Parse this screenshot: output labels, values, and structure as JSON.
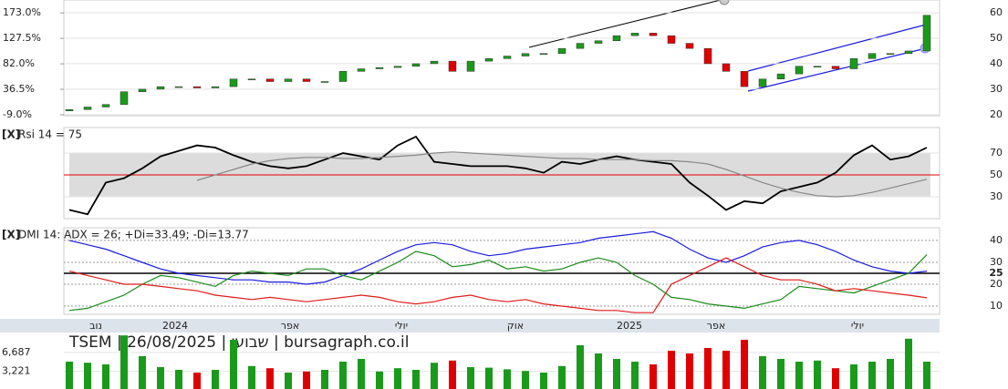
{
  "chart_data": [
    {
      "type": "candlestick",
      "open": [
        21.5,
        22,
        23,
        24,
        29,
        30,
        31,
        31,
        30.5,
        31,
        34,
        34,
        33,
        34,
        33,
        33,
        37,
        38,
        38.5,
        39,
        40,
        41,
        37,
        41,
        42,
        43,
        44,
        44,
        46,
        48,
        49,
        51,
        52,
        51,
        48,
        46,
        40,
        37,
        31,
        34,
        36,
        39,
        39,
        38,
        42,
        44,
        44,
        45
      ],
      "close": [
        22,
        23,
        24,
        29,
        30,
        31,
        31,
        30.5,
        31,
        34,
        34,
        33,
        34,
        33,
        33,
        37,
        38,
        38.5,
        39,
        40,
        41,
        37,
        41,
        42,
        43,
        44,
        44,
        46,
        48,
        49,
        51,
        52,
        51,
        48,
        46,
        40,
        37,
        31,
        34,
        36,
        39,
        39,
        38,
        42,
        44,
        44,
        45,
        59
      ],
      "up_color": "#1a9a1a",
      "down_color": "#e00000",
      "ylim": [
        19.6,
        65
      ],
      "yticks": [
        20,
        30,
        40,
        50,
        60
      ],
      "y2lim": [
        -10.6,
        196
      ],
      "y2ticks": [
        {
          "value": -9,
          "label": "-9.0%"
        },
        {
          "value": 36.5,
          "label": "36.5%"
        },
        {
          "value": 82,
          "label": "82.0%"
        },
        {
          "value": 127.5,
          "label": "127.5%"
        },
        {
          "value": 173,
          "label": "173.0%"
        }
      ],
      "x_tick_labels": [
        "נוב",
        "2024",
        "אפר",
        "יולי",
        "אוק",
        "2025",
        "אפר",
        "יולי"
      ]
    },
    {
      "type": "line",
      "title_marker": "[X]",
      "title": "Rsi 14 = 75",
      "ylim": [
        10,
        93.3
      ],
      "yticks": [
        30,
        50,
        70
      ],
      "band": [
        30,
        70
      ],
      "reference": 50,
      "series": [
        {
          "color": "#000000",
          "values": [
            18,
            14,
            43,
            47,
            56,
            67,
            72,
            77,
            75,
            68,
            62,
            58,
            56,
            58,
            64,
            70,
            67,
            64,
            77,
            85,
            62,
            60,
            58,
            58,
            58,
            56,
            52,
            62,
            60,
            64,
            67,
            64,
            62,
            60,
            43,
            31,
            18,
            26,
            24,
            35,
            39,
            43,
            52,
            68,
            77,
            64,
            67,
            75
          ]
        },
        {
          "color": "#888888",
          "values": [
            null,
            null,
            null,
            null,
            null,
            null,
            null,
            45,
            50,
            55,
            60,
            63,
            65,
            66,
            66,
            65,
            65,
            66,
            67,
            68,
            70,
            71,
            70,
            69,
            68,
            67,
            66,
            65,
            65,
            64,
            64,
            64,
            63,
            63,
            62,
            60,
            55,
            49,
            43,
            38,
            34,
            31,
            30,
            31,
            34,
            38,
            42,
            46
          ]
        }
      ]
    },
    {
      "type": "line",
      "title_marker": "[X]",
      "title": "DMI 14: ADX = 26; +Di=33.49; -Di=13.77",
      "ylim": [
        6.25,
        45.8
      ],
      "yticks": [
        10,
        20,
        25,
        30,
        40
      ],
      "reference": 25,
      "series": [
        {
          "color": "#1a1ae0",
          "values": [
            40,
            38,
            36,
            33,
            30,
            27,
            25,
            24,
            23,
            22,
            22,
            21,
            21,
            20,
            21,
            24,
            27,
            31,
            35,
            38,
            39,
            38,
            35,
            33,
            34,
            36,
            37,
            38,
            39,
            41,
            42,
            43,
            44,
            41,
            36,
            32,
            30,
            33,
            37,
            39,
            40,
            38,
            35,
            31,
            28,
            26,
            25,
            26
          ]
        },
        {
          "color": "#1a8a1a",
          "values": [
            8,
            9,
            12,
            15,
            20,
            24,
            23,
            21,
            19,
            24,
            26,
            25,
            24,
            27,
            27,
            24,
            22,
            26,
            30,
            35,
            33,
            28,
            29,
            31,
            27,
            28,
            26,
            27,
            30,
            32,
            30,
            24,
            20,
            14,
            13,
            11,
            10,
            9,
            11,
            13,
            19,
            18,
            17,
            16,
            19,
            22,
            25,
            33.49
          ]
        },
        {
          "color": "#e01a1a",
          "values": [
            26,
            24,
            22,
            20,
            20,
            19,
            18,
            17,
            15,
            14,
            13,
            14,
            13,
            12,
            13,
            14,
            15,
            14,
            12,
            11,
            12,
            14,
            15,
            13,
            12,
            13,
            11,
            10,
            9,
            8,
            8,
            7,
            7,
            20,
            24,
            28,
            32,
            28,
            24,
            22,
            22,
            20,
            17,
            18,
            17,
            16,
            15,
            13.77
          ]
        }
      ]
    },
    {
      "type": "bar",
      "title": "TSEM | 26/08/2025 | שבועי | bursagraph.co.il",
      "ylim": [
        0,
        10327
      ],
      "yticks": [
        {
          "value": 3221,
          "label": "3,221"
        },
        {
          "value": 6687,
          "label": "6,687"
        }
      ],
      "values": [
        5000,
        4800,
        4500,
        9800,
        6000,
        4000,
        3500,
        3000,
        3500,
        9000,
        4200,
        3800,
        3000,
        3200,
        3500,
        5000,
        5500,
        3200,
        3800,
        3500,
        4800,
        5200,
        4000,
        3900,
        3600,
        3300,
        3000,
        4200,
        8000,
        6500,
        5500,
        5000,
        4500,
        7000,
        6500,
        7500,
        7000,
        9000,
        6000,
        5500,
        5000,
        5200,
        3800,
        4500,
        5000,
        5500,
        9200,
        5000
      ]
    }
  ]
}
